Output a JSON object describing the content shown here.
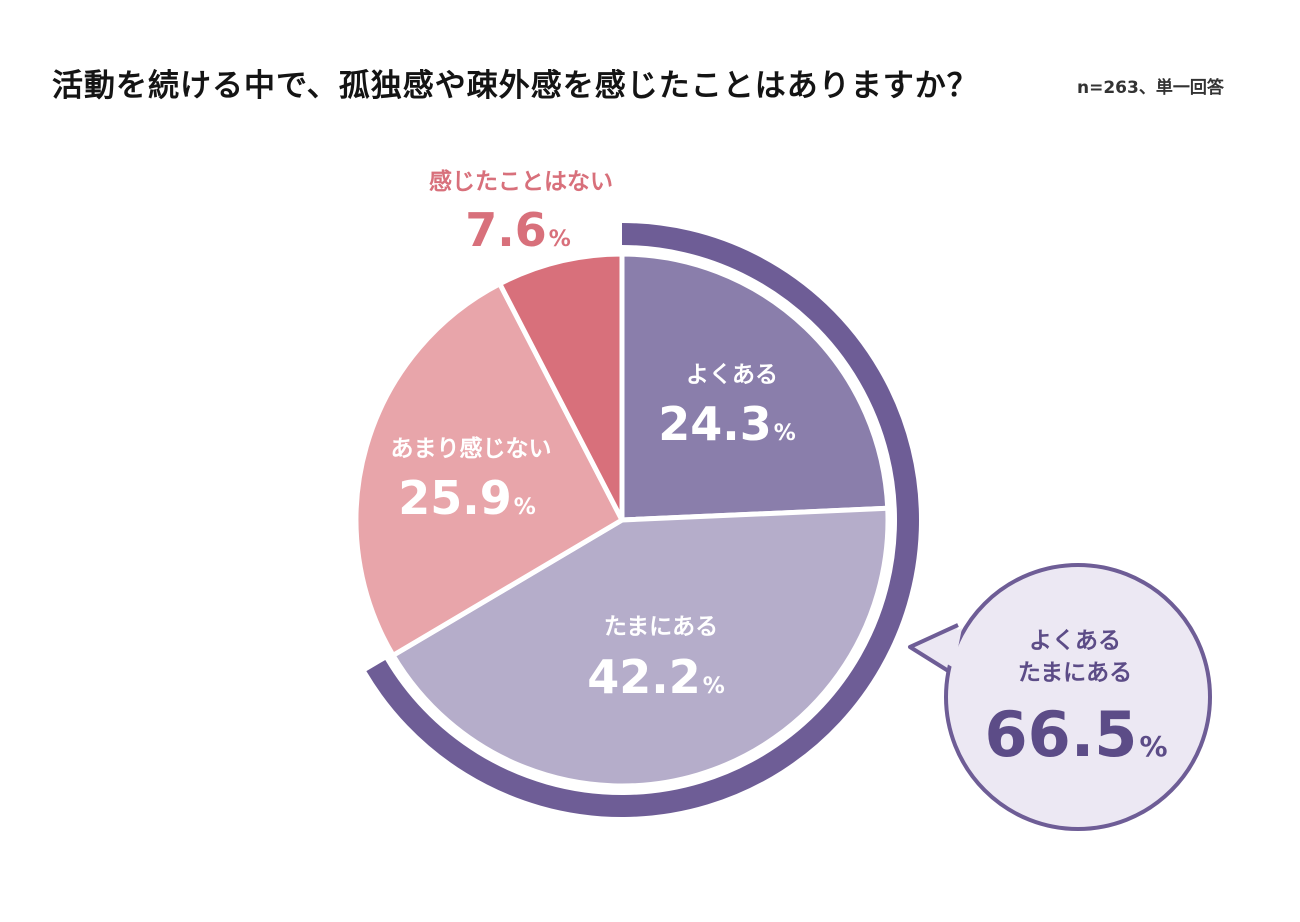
{
  "header": {
    "title": "活動を続ける中で、孤独感や疎外感を感じたことはありますか？",
    "note": "n=263、単一回答"
  },
  "colors": {
    "often": "#8a7eab",
    "sometimes": "#b5adca",
    "rarely": "#e8a5aa",
    "never": "#d8707b",
    "ring": "#6e5d96",
    "bubble_fill": "#ece8f3",
    "bubble_text": "#5c4c87"
  },
  "chart_data": {
    "type": "pie",
    "unit": "%",
    "slices": [
      {
        "label": "よくある",
        "value": 24.3,
        "value_text": "24.3",
        "color": "#8a7eab"
      },
      {
        "label": "たまにある",
        "value": 42.2,
        "value_text": "42.2",
        "color": "#b5adca"
      },
      {
        "label": "あまり感じない",
        "value": 25.9,
        "value_text": "25.9",
        "color": "#e8a5aa"
      },
      {
        "label": "感じたことはない",
        "value": 7.6,
        "value_text": "7.6",
        "color": "#d8707b"
      }
    ],
    "highlight": {
      "label_line1": "よくある",
      "label_line2": "たまにある",
      "value": 66.5,
      "value_text": "66.5"
    }
  }
}
